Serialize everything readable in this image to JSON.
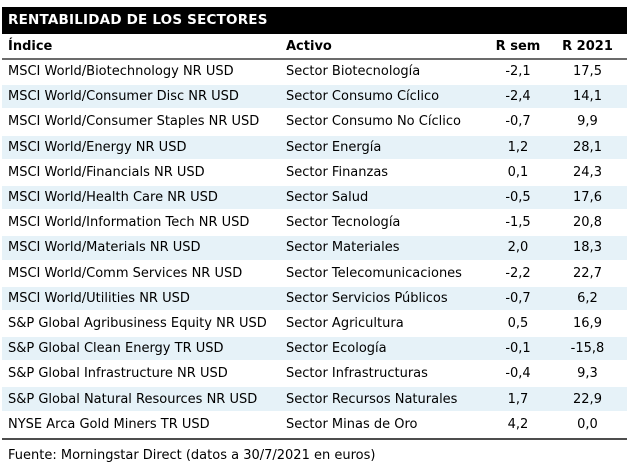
{
  "title": "RENTABILIDAD DE LOS SECTORES",
  "table": {
    "columns": [
      {
        "label": "Índice",
        "align": "left"
      },
      {
        "label": "Activo",
        "align": "left"
      },
      {
        "label": "R sem",
        "align": "center"
      },
      {
        "label": "R 2021",
        "align": "center"
      }
    ],
    "rows": [
      [
        "MSCI World/Biotechnology NR USD",
        "Sector Biotecnología",
        "-2,1",
        "17,5"
      ],
      [
        "MSCI World/Consumer Disc NR USD",
        "Sector Consumo Cíclico",
        "-2,4",
        "14,1"
      ],
      [
        "MSCI World/Consumer Staples NR USD",
        "Sector Consumo No Cíclico",
        "-0,7",
        "9,9"
      ],
      [
        "MSCI World/Energy NR USD",
        "Sector Energía",
        "1,2",
        "28,1"
      ],
      [
        "MSCI World/Financials NR USD",
        "Sector Finanzas",
        "0,1",
        "24,3"
      ],
      [
        "MSCI World/Health Care NR USD",
        "Sector Salud",
        "-0,5",
        "17,6"
      ],
      [
        "MSCI World/Information Tech NR USD",
        "Sector Tecnología",
        "-1,5",
        "20,8"
      ],
      [
        "MSCI World/Materials NR USD",
        "Sector Materiales",
        "2,0",
        "18,3"
      ],
      [
        "MSCI World/Comm Services NR USD",
        "Sector Telecomunicaciones",
        "-2,2",
        "22,7"
      ],
      [
        "MSCI World/Utilities NR USD",
        "Sector Servicios Públicos",
        "-0,7",
        "6,2"
      ],
      [
        "S&P Global Agribusiness Equity NR USD",
        "Sector Agricultura",
        "0,5",
        "16,9"
      ],
      [
        "S&P Global Clean Energy TR USD",
        "Sector Ecología",
        "-0,1",
        "-15,8"
      ],
      [
        "S&P Global Infrastructure NR USD",
        "Sector Infrastructuras",
        "-0,4",
        "9,3"
      ],
      [
        "S&P Global Natural Resources NR USD",
        "Sector Recursos Naturales",
        "1,7",
        "22,9"
      ],
      [
        "NYSE Arca Gold Miners TR USD",
        "Sector Minas de Oro",
        "4,2",
        "0,0"
      ]
    ]
  },
  "footer": {
    "text": "Fuente: Morningstar Direct (datos a 30/7/2021 en euros)"
  },
  "colors": {
    "header_bg": "#000000",
    "header_fg": "#ffffff",
    "alt_row_bg": "#e6f2f8",
    "header_rule": "#6b6b6b",
    "bottom_rule": "#4d4d4d",
    "text": "#000000"
  }
}
